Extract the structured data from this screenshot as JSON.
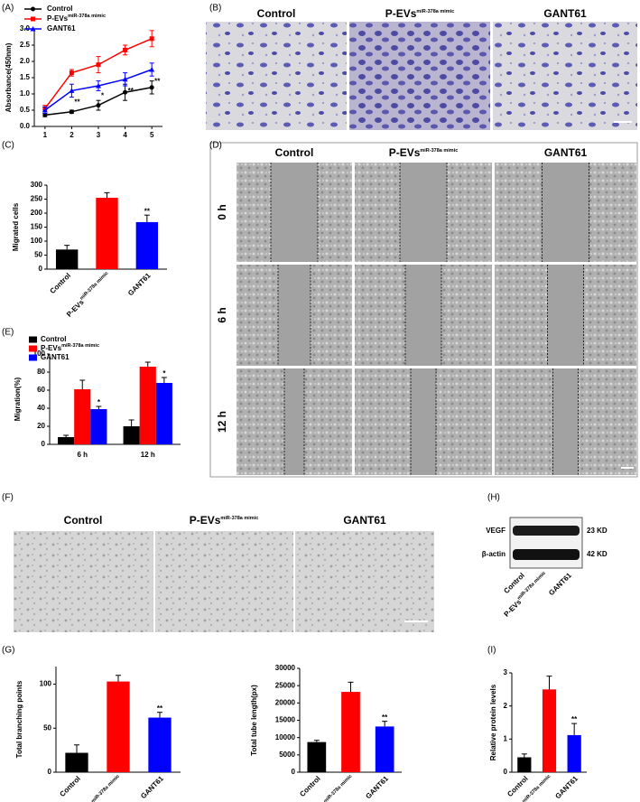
{
  "figure": {
    "panel_labels": [
      "(A)",
      "(B)",
      "(C)",
      "(D)",
      "(E)",
      "(F)",
      "(G)",
      "(H)",
      "(I)"
    ],
    "panel_B": {
      "columns": [
        "Control",
        {
          "text": "P-EVs",
          "sup": "miR-378a mimic"
        },
        "GANT61"
      ]
    },
    "panel_D": {
      "columns": [
        "Control",
        {
          "text": "P-EVs",
          "sup": "miR-378a mimic"
        },
        "GANT61"
      ],
      "rows": [
        "0 h",
        "6 h",
        "12 h"
      ]
    },
    "panel_F": {
      "columns": [
        "Control",
        {
          "text": "P-EVs",
          "sup": "miR-378a mimic"
        },
        "GANT61"
      ]
    },
    "panel_H": {
      "bands": [
        "VEGF",
        "β-actin"
      ],
      "sizes": [
        "23 KD",
        "42 KD"
      ],
      "lanes": [
        "Control",
        {
          "text": "P-EVs",
          "sup": "miR-378a mimic"
        },
        "GANT61"
      ]
    }
  },
  "chart_data": [
    {
      "type": "line",
      "y_label": "Absorbance(450nm)",
      "x": [
        1,
        2,
        3,
        4,
        5
      ],
      "xlim": [
        0.6,
        5.4
      ],
      "xticks": [
        1,
        2,
        3,
        4,
        5
      ],
      "ylim": [
        0,
        3
      ],
      "yticks": [
        {
          "value": 0,
          "label": "0.0"
        },
        0.5,
        {
          "value": 1,
          "label": "1.0"
        },
        1.5,
        {
          "value": 2,
          "label": "2.0"
        },
        2.5,
        {
          "value": 3,
          "label": "3.0"
        }
      ],
      "legend": "upper left",
      "series": [
        {
          "name": "Control",
          "color": "#000000",
          "marker": "circle",
          "values": [
            0.35,
            0.45,
            0.65,
            1.05,
            1.2
          ],
          "errors": [
            0.05,
            0.05,
            0.15,
            0.25,
            0.2
          ]
        },
        {
          "name": {
            "text": "P-EVs",
            "sup": "miR-378a mimic"
          },
          "color": "#ff0000",
          "marker": "square",
          "values": [
            0.55,
            1.65,
            1.9,
            2.35,
            2.7
          ],
          "errors": [
            0.1,
            0.1,
            0.25,
            0.15,
            0.25
          ]
        },
        {
          "name": "GANT61",
          "color": "#0000ff",
          "marker": "triangle",
          "values": [
            0.5,
            1.1,
            1.25,
            1.45,
            1.75
          ],
          "errors": [
            0.1,
            0.2,
            0.15,
            0.2,
            0.2
          ],
          "significance": [
            null,
            "**",
            "*",
            "**",
            "**"
          ]
        }
      ]
    },
    {
      "type": "bar",
      "y_label": "Migrated cells",
      "categories": [
        "Control",
        {
          "text": "P-EVs",
          "sup": "miR-378a mimic"
        },
        "GANT61"
      ],
      "values": [
        70,
        255,
        168
      ],
      "errors": [
        15,
        18,
        25
      ],
      "colors": [
        "#000000",
        "#ff0000",
        "#0000ff"
      ],
      "significance": [
        null,
        null,
        "**"
      ],
      "ylim": [
        0,
        300
      ],
      "yticks": [
        0,
        50,
        100,
        150,
        200,
        250,
        300
      ]
    },
    {
      "type": "bar",
      "y_label": "Migration(%)",
      "categories": [
        "6 h",
        "12 h"
      ],
      "legend": "upper left",
      "ylim": [
        0,
        100
      ],
      "yticks": [
        0,
        20,
        40,
        60,
        80,
        100
      ],
      "series": [
        {
          "name": "Control",
          "color": "#000000",
          "values": [
            8,
            20
          ],
          "errors": [
            2,
            7
          ]
        },
        {
          "name": {
            "text": "P-EVs",
            "sup": "miR-378a mimic"
          },
          "color": "#ff0000",
          "values": [
            61,
            86
          ],
          "errors": [
            10,
            5
          ]
        },
        {
          "name": "GANT61",
          "color": "#0000ff",
          "values": [
            39,
            68
          ],
          "errors": [
            3,
            6
          ],
          "significance": [
            "*",
            "*"
          ]
        }
      ]
    },
    {
      "type": "bar",
      "y_label": "Total branching points",
      "categories": [
        "Control",
        {
          "text": "P-EVs",
          "sup": "miR-378a mimic"
        },
        "GANT61"
      ],
      "values": [
        22,
        103,
        62
      ],
      "errors": [
        9,
        7,
        6
      ],
      "colors": [
        "#000000",
        "#ff0000",
        "#0000ff"
      ],
      "significance": [
        null,
        null,
        "**"
      ],
      "ylim": [
        0,
        120
      ],
      "yticks": [
        0,
        50,
        100
      ]
    },
    {
      "type": "bar",
      "y_label": "Total tube length(px)",
      "categories": [
        "Control",
        {
          "text": "P-EVs",
          "sup": "miR-378a mimic"
        },
        "GANT61"
      ],
      "values": [
        8700,
        23200,
        13200
      ],
      "errors": [
        500,
        2800,
        1500
      ],
      "colors": [
        "#000000",
        "#ff0000",
        "#0000ff"
      ],
      "significance": [
        null,
        null,
        "**"
      ],
      "ylim": [
        0,
        30000
      ],
      "yticks": [
        0,
        5000,
        10000,
        15000,
        20000,
        25000,
        30000
      ]
    },
    {
      "type": "bar",
      "y_label": "Relative protein levels",
      "categories": [
        "Control",
        {
          "text": "P-EVs",
          "sup": "miR-378a mimic"
        },
        "GANT61"
      ],
      "values": [
        0.45,
        2.5,
        1.12
      ],
      "errors": [
        0.1,
        0.4,
        0.35
      ],
      "colors": [
        "#000000",
        "#ff0000",
        "#0000ff"
      ],
      "significance": [
        null,
        null,
        "**"
      ],
      "ylim": [
        0,
        3
      ],
      "yticks": [
        0,
        1,
        2,
        3
      ]
    }
  ]
}
